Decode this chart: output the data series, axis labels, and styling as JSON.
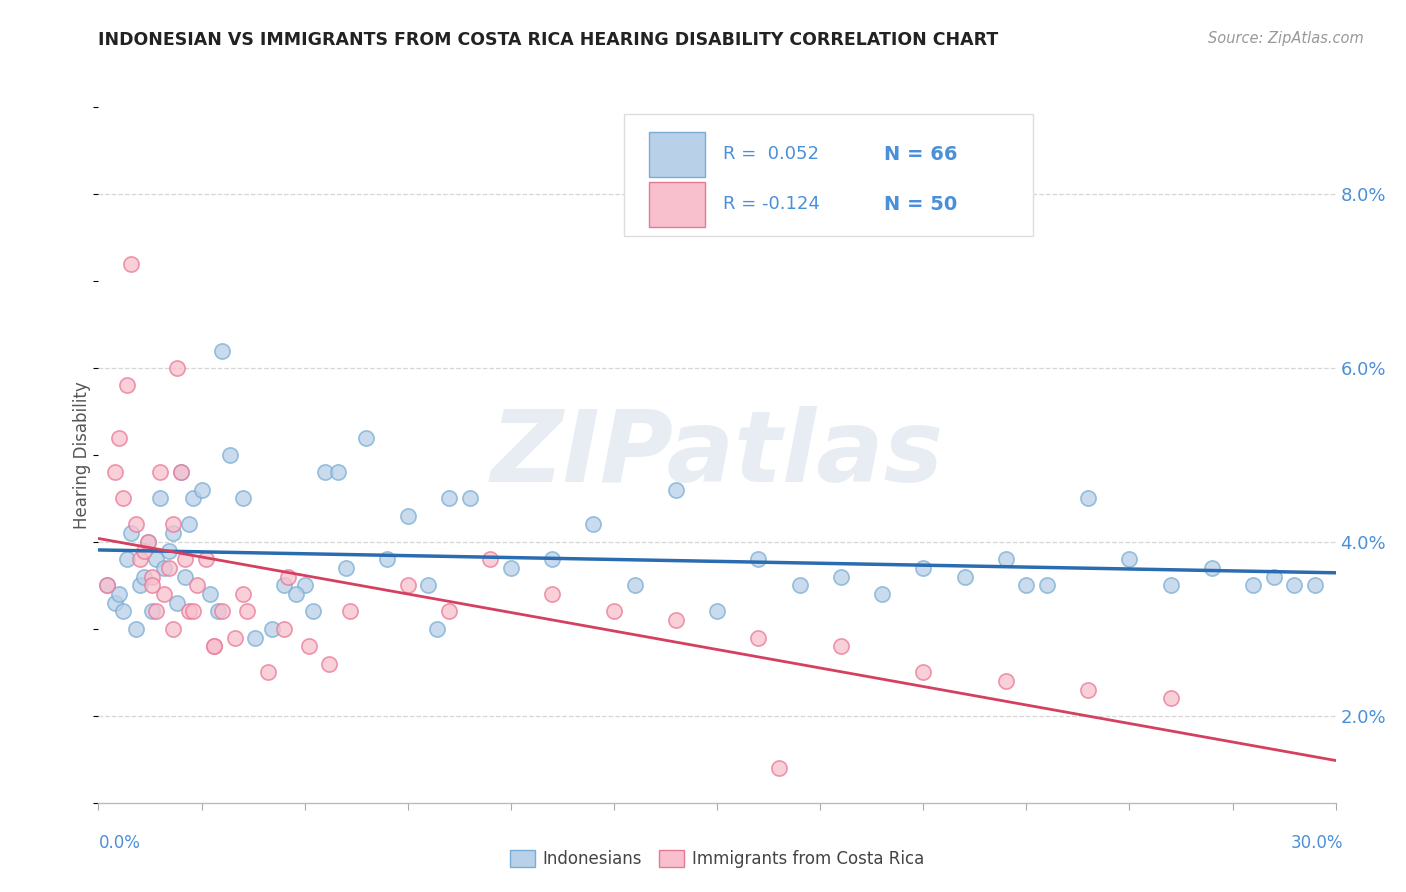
{
  "title": "INDONESIAN VS IMMIGRANTS FROM COSTA RICA HEARING DISABILITY CORRELATION CHART",
  "source": "Source: ZipAtlas.com",
  "ylabel": "Hearing Disability",
  "xlim": [
    0.0,
    30.0
  ],
  "ylim": [
    1.0,
    9.0
  ],
  "yticks": [
    2.0,
    4.0,
    6.0,
    8.0
  ],
  "ytick_labels": [
    "2.0%",
    "4.0%",
    "6.0%",
    "8.0%"
  ],
  "series1_label": "Indonesians",
  "series1_face_color": "#b8d0e8",
  "series1_edge_color": "#7aadd4",
  "series1_line_color": "#2b6cb0",
  "series2_label": "Immigrants from Costa Rica",
  "series2_face_color": "#f8c0cc",
  "series2_edge_color": "#e87898",
  "series2_line_color": "#d64060",
  "legend_R1": "R =  0.052",
  "legend_N1": "N = 66",
  "legend_R2": "R = -0.124",
  "legend_N2": "N = 50",
  "watermark": "ZIPatlas",
  "background_color": "#ffffff",
  "grid_color": "#cccccc",
  "title_color": "#222222",
  "axis_label_color": "#4a90d9",
  "series1_x": [
    0.2,
    0.4,
    0.5,
    0.6,
    0.7,
    0.8,
    0.9,
    1.0,
    1.1,
    1.2,
    1.3,
    1.4,
    1.5,
    1.6,
    1.7,
    1.8,
    1.9,
    2.0,
    2.1,
    2.2,
    2.3,
    2.5,
    2.7,
    2.9,
    3.2,
    3.5,
    3.8,
    4.2,
    4.5,
    5.0,
    5.2,
    5.5,
    6.0,
    6.5,
    7.0,
    7.5,
    8.0,
    8.5,
    9.0,
    10.0,
    11.0,
    12.0,
    13.0,
    14.0,
    15.0,
    16.0,
    17.0,
    18.0,
    19.0,
    20.0,
    21.0,
    22.0,
    23.0,
    24.0,
    25.0,
    26.0,
    27.0,
    28.0,
    28.5,
    29.0,
    29.5,
    3.0,
    4.8,
    22.5,
    5.8,
    8.2
  ],
  "series1_y": [
    3.5,
    3.3,
    3.4,
    3.2,
    3.8,
    4.1,
    3.0,
    3.5,
    3.6,
    4.0,
    3.2,
    3.8,
    4.5,
    3.7,
    3.9,
    4.1,
    3.3,
    4.8,
    3.6,
    4.2,
    4.5,
    4.6,
    3.4,
    3.2,
    5.0,
    4.5,
    2.9,
    3.0,
    3.5,
    3.5,
    3.2,
    4.8,
    3.7,
    5.2,
    3.8,
    4.3,
    3.5,
    4.5,
    4.5,
    3.7,
    3.8,
    4.2,
    3.5,
    4.6,
    3.2,
    3.8,
    3.5,
    3.6,
    3.4,
    3.7,
    3.6,
    3.8,
    3.5,
    4.5,
    3.8,
    3.5,
    3.7,
    3.5,
    3.6,
    3.5,
    3.5,
    6.2,
    3.4,
    3.5,
    4.8,
    3.0
  ],
  "series2_x": [
    0.2,
    0.4,
    0.5,
    0.6,
    0.7,
    0.8,
    0.9,
    1.0,
    1.1,
    1.2,
    1.3,
    1.4,
    1.5,
    1.6,
    1.7,
    1.8,
    1.9,
    2.0,
    2.1,
    2.2,
    2.4,
    2.6,
    2.8,
    3.0,
    3.3,
    3.6,
    4.1,
    4.6,
    5.1,
    5.6,
    6.1,
    7.5,
    8.5,
    9.5,
    11.0,
    12.5,
    14.0,
    16.0,
    18.0,
    20.0,
    22.0,
    24.0,
    26.0,
    1.3,
    1.8,
    2.3,
    2.8,
    3.5,
    4.5,
    16.5
  ],
  "series2_y": [
    3.5,
    4.8,
    5.2,
    4.5,
    5.8,
    7.2,
    4.2,
    3.8,
    3.9,
    4.0,
    3.6,
    3.2,
    4.8,
    3.4,
    3.7,
    4.2,
    6.0,
    4.8,
    3.8,
    3.2,
    3.5,
    3.8,
    2.8,
    3.2,
    2.9,
    3.2,
    2.5,
    3.6,
    2.8,
    2.6,
    3.2,
    3.5,
    3.2,
    3.8,
    3.4,
    3.2,
    3.1,
    2.9,
    2.8,
    2.5,
    2.4,
    2.3,
    2.2,
    3.5,
    3.0,
    3.2,
    2.8,
    3.4,
    3.0,
    1.4
  ]
}
